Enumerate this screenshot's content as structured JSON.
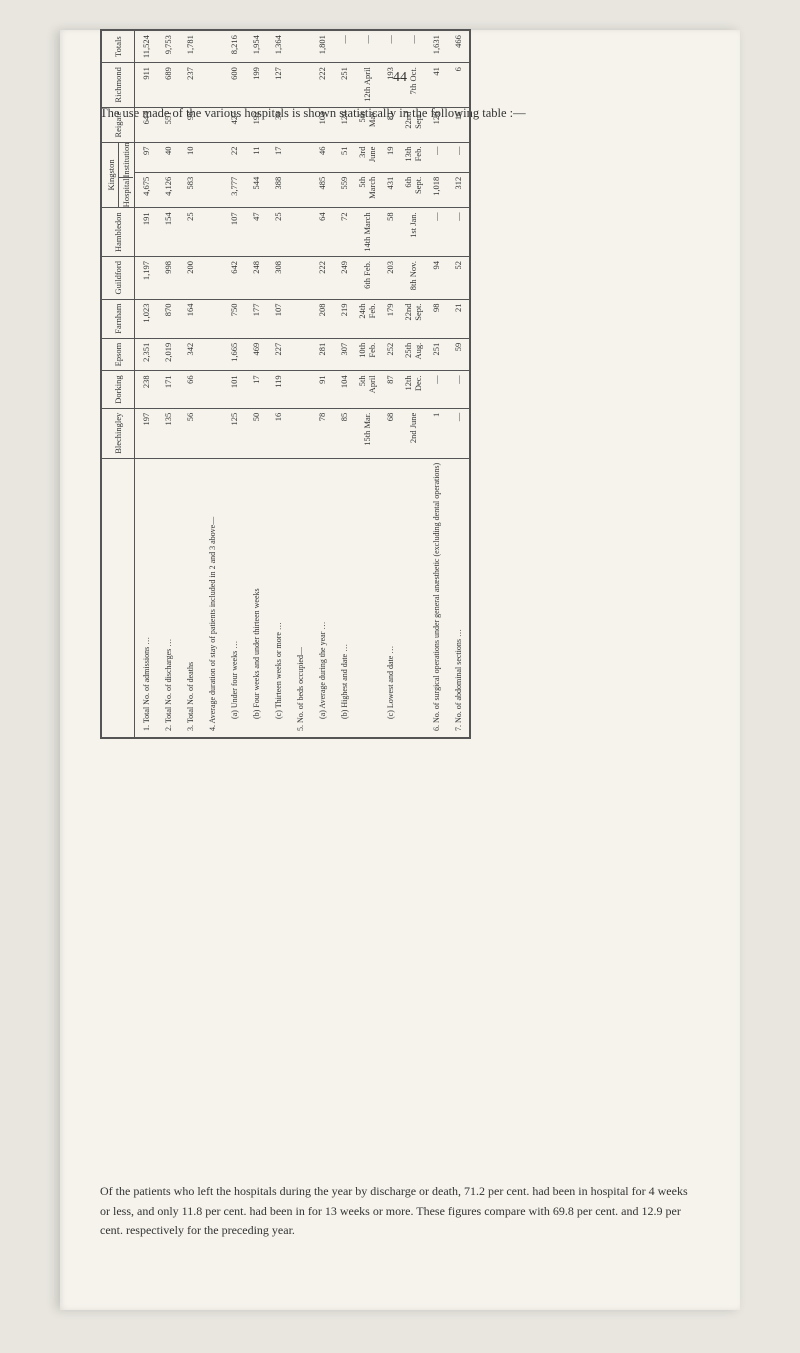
{
  "page_number": "44",
  "intro": "The use made of the various hospitals is shown statistically in the following table :—",
  "table": {
    "columns": [
      "",
      "Blechingley",
      "Dorking",
      "Epsom",
      "Farnham",
      "Guildford",
      "Hambledon",
      "Kingston_Hospital",
      "Kingston_Institution",
      "Reigate",
      "Richmond",
      "Totals"
    ],
    "kingston_header": "Kingston",
    "kingston_sub": [
      "Hospital",
      "Institution"
    ],
    "rows": [
      {
        "num": "1.",
        "label": "Total No. of admissions …",
        "v": [
          "197",
          "238",
          "2,351",
          "1,023",
          "1,197",
          "191",
          "4,675",
          "97",
          "644",
          "911",
          "11,524"
        ]
      },
      {
        "num": "2.",
        "label": "Total No. of discharges …",
        "v": [
          "135",
          "171",
          "2,019",
          "870",
          "998",
          "154",
          "4,126",
          "40",
          "551",
          "689",
          "9,753"
        ]
      },
      {
        "num": "3.",
        "label": "Total No. of deaths",
        "v": [
          "56",
          "66",
          "342",
          "164",
          "200",
          "25",
          "583",
          "10",
          "98",
          "237",
          "1,781"
        ]
      },
      {
        "num": "4.",
        "label": "Average duration of stay of patients included in 2 and 3 above—",
        "v": [
          "",
          "",
          "",
          "",
          "",
          "",
          "",
          "",
          "",
          "",
          ""
        ]
      },
      {
        "num": "",
        "label": "(a) Under four weeks …",
        "indent": true,
        "v": [
          "125",
          "101",
          "1,665",
          "750",
          "642",
          "107",
          "3,777",
          "22",
          "427",
          "600",
          "8,216"
        ]
      },
      {
        "num": "",
        "label": "(b) Four weeks and under thirteen weeks",
        "indent": true,
        "v": [
          "50",
          "17",
          "469",
          "177",
          "248",
          "47",
          "544",
          "11",
          "192",
          "199",
          "1,954"
        ]
      },
      {
        "num": "",
        "label": "(c) Thirteen weeks or more …",
        "indent": true,
        "v": [
          "16",
          "119",
          "227",
          "107",
          "308",
          "25",
          "388",
          "17",
          "30",
          "127",
          "1,364"
        ]
      },
      {
        "num": "5.",
        "label": "No. of beds occupied—",
        "v": [
          "",
          "",
          "",
          "",
          "",
          "",
          "",
          "",
          "",
          "",
          ""
        ]
      },
      {
        "num": "",
        "label": "(a) Average during the year …",
        "indent": true,
        "v": [
          "78",
          "91",
          "281",
          "208",
          "222",
          "64",
          "485",
          "46",
          "104",
          "222",
          "1,801"
        ]
      },
      {
        "num": "",
        "label": "(b) Highest and date …",
        "indent": true,
        "v": [
          "85",
          "104",
          "307",
          "219",
          "249",
          "72",
          "559",
          "51",
          "120",
          "251",
          "—"
        ]
      },
      {
        "num": "",
        "label": "",
        "indent": true,
        "v": [
          "15th Mar.",
          "5th April",
          "10th Feb.",
          "24th Feb.",
          "6th Feb.",
          "14th March",
          "5th March",
          "3rd June",
          "5th May",
          "12th April",
          "—"
        ]
      },
      {
        "num": "",
        "label": "(c) Lowest and date …",
        "indent": true,
        "v": [
          "68",
          "87",
          "252",
          "179",
          "203",
          "58",
          "431",
          "19",
          "81",
          "193",
          "—"
        ]
      },
      {
        "num": "",
        "label": "",
        "indent": true,
        "v": [
          "2nd June",
          "12th Dec.",
          "25th Aug.",
          "22nd Sept.",
          "8th Nov.",
          "1st Jan.",
          "6th Sept.",
          "13th Feb.",
          "22nd Sept.",
          "7th Oct.",
          "—"
        ]
      },
      {
        "num": "6.",
        "label": "No. of surgical operations under general anæsthetic (excluding dental operations)",
        "v": [
          "1",
          "—",
          "251",
          "98",
          "94",
          "—",
          "1,018",
          "—",
          "128",
          "41",
          "1,631"
        ]
      },
      {
        "num": "7.",
        "label": "No. of abdominal sections …",
        "v": [
          "—",
          "—",
          "59",
          "21",
          "52",
          "—",
          "312",
          "—",
          "16",
          "6",
          "466"
        ]
      }
    ]
  },
  "footnote": "Of the patients who left the hospitals during the year by discharge or death, 71.2 per cent. had been in hospital for 4 weeks or less, and only 11.8 per cent. had been in for 13 weeks or more. These figures compare with 69.8 per cent. and 12.9 per cent. respectively for the preceding year."
}
